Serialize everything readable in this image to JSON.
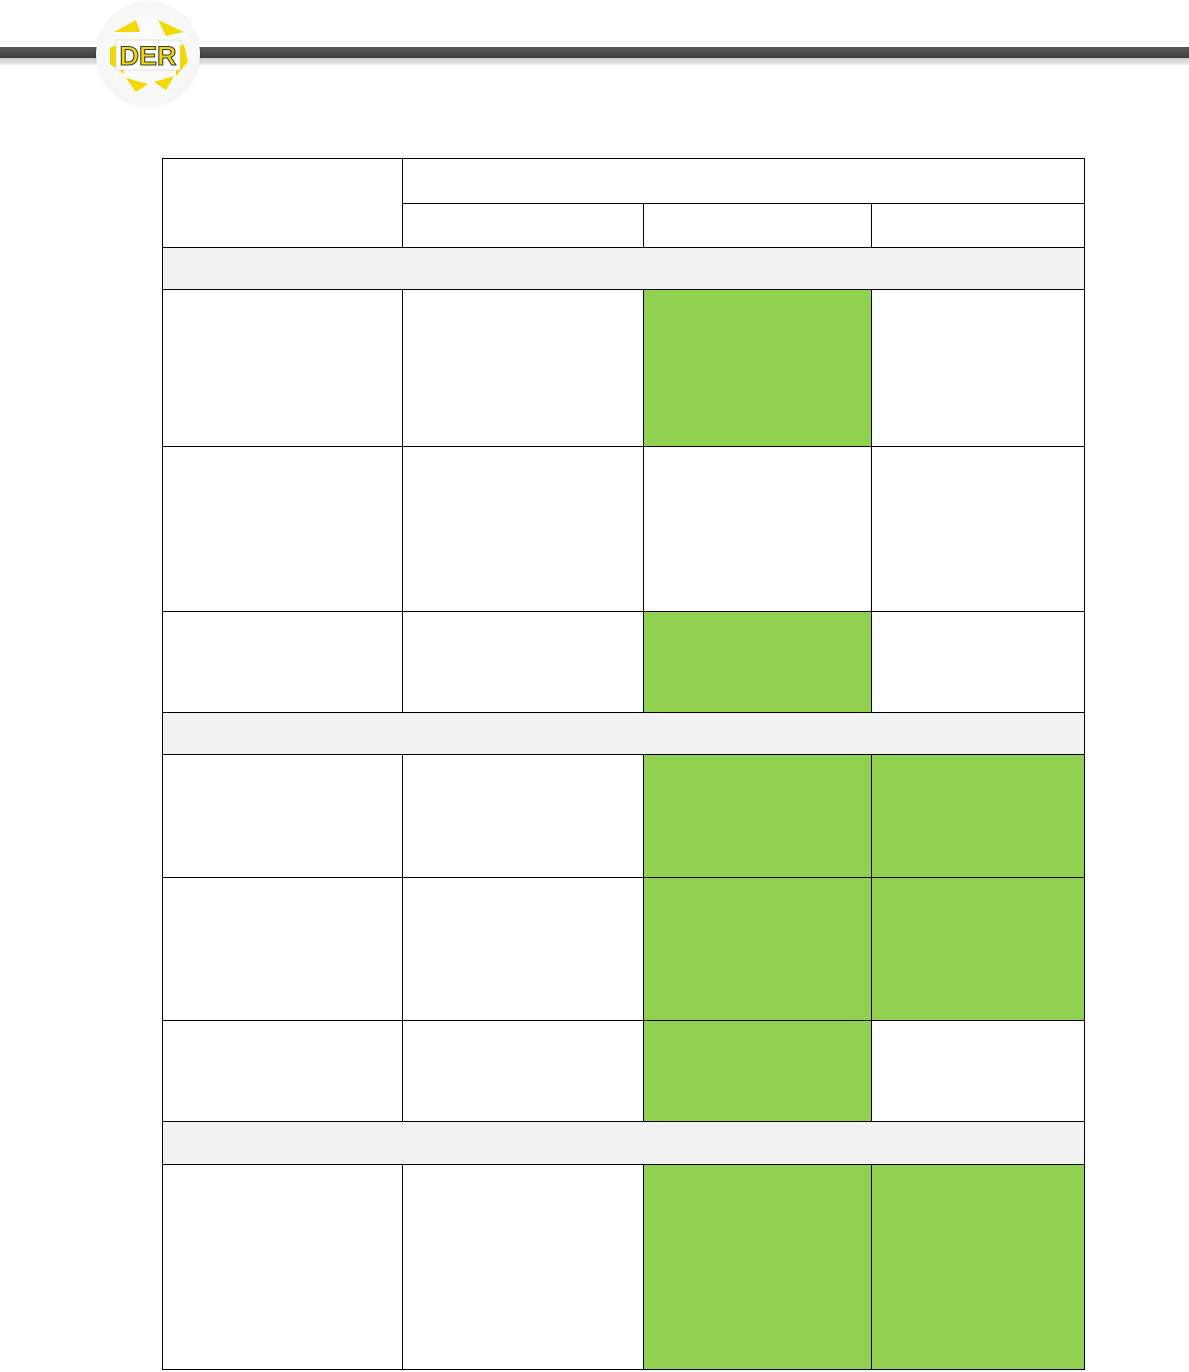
{
  "header": {
    "logo_text": "DER",
    "logo_color": "#f5d800"
  },
  "colors": {
    "highlight_green": "#92d050",
    "section_gray": "#f2f2f2",
    "grid_line": "#000000"
  },
  "table": {
    "rows": [
      {
        "type": "section"
      },
      {
        "type": "data",
        "cells": [
          "white",
          "white",
          "green",
          "white"
        ]
      },
      {
        "type": "data",
        "cells": [
          "white",
          "white",
          "white",
          "white"
        ]
      },
      {
        "type": "data",
        "cells": [
          "white",
          "white",
          "green",
          "white"
        ]
      },
      {
        "type": "section"
      },
      {
        "type": "data",
        "cells": [
          "white",
          "white",
          "green",
          "green"
        ]
      },
      {
        "type": "data",
        "cells": [
          "white",
          "white",
          "green",
          "green"
        ]
      },
      {
        "type": "data",
        "cells": [
          "white",
          "white",
          "green",
          "white"
        ]
      },
      {
        "type": "section"
      },
      {
        "type": "data",
        "cells": [
          "white",
          "white",
          "green",
          "green"
        ]
      }
    ]
  }
}
